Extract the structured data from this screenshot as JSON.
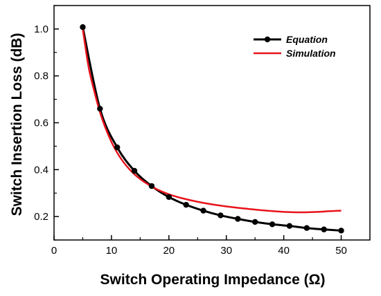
{
  "chart_data": {
    "type": "line",
    "xlabel": "Switch Operating Impedance (Ω)",
    "ylabel": "Switch Insertion Loss (dB)",
    "xlim": [
      0,
      55
    ],
    "ylim": [
      0.1,
      1.1
    ],
    "xticks": [
      0,
      10,
      20,
      30,
      40,
      50
    ],
    "yticks": [
      0.2,
      0.4,
      0.6,
      0.8,
      1.0
    ],
    "xtick_labels": [
      "0",
      "10",
      "20",
      "30",
      "40",
      "50"
    ],
    "ytick_labels": [
      "0.2",
      "0.4",
      "0.6",
      "0.8",
      "1.0"
    ],
    "legend_position": "top-right",
    "grid": false,
    "series": [
      {
        "name": "Equation",
        "color": "#000000",
        "marker": "circle",
        "x": [
          5,
          8,
          11,
          14,
          17,
          20,
          23,
          26,
          29,
          32,
          35,
          38,
          41,
          44,
          47,
          50
        ],
        "y": [
          1.008,
          0.66,
          0.495,
          0.395,
          0.33,
          0.283,
          0.25,
          0.225,
          0.205,
          0.19,
          0.177,
          0.167,
          0.16,
          0.151,
          0.145,
          0.14
        ]
      },
      {
        "name": "Simulation",
        "color": "#e8131b",
        "marker": "none",
        "x": [
          5,
          6,
          7,
          8,
          9,
          10,
          11,
          12,
          13,
          14,
          15,
          16,
          17,
          18,
          20,
          22,
          25,
          28,
          31,
          34,
          37,
          40,
          43,
          46,
          48,
          50
        ],
        "y": [
          1.0,
          0.84,
          0.735,
          0.645,
          0.575,
          0.518,
          0.472,
          0.435,
          0.405,
          0.38,
          0.36,
          0.343,
          0.328,
          0.315,
          0.295,
          0.28,
          0.263,
          0.25,
          0.24,
          0.232,
          0.225,
          0.22,
          0.218,
          0.22,
          0.223,
          0.225
        ]
      }
    ]
  }
}
